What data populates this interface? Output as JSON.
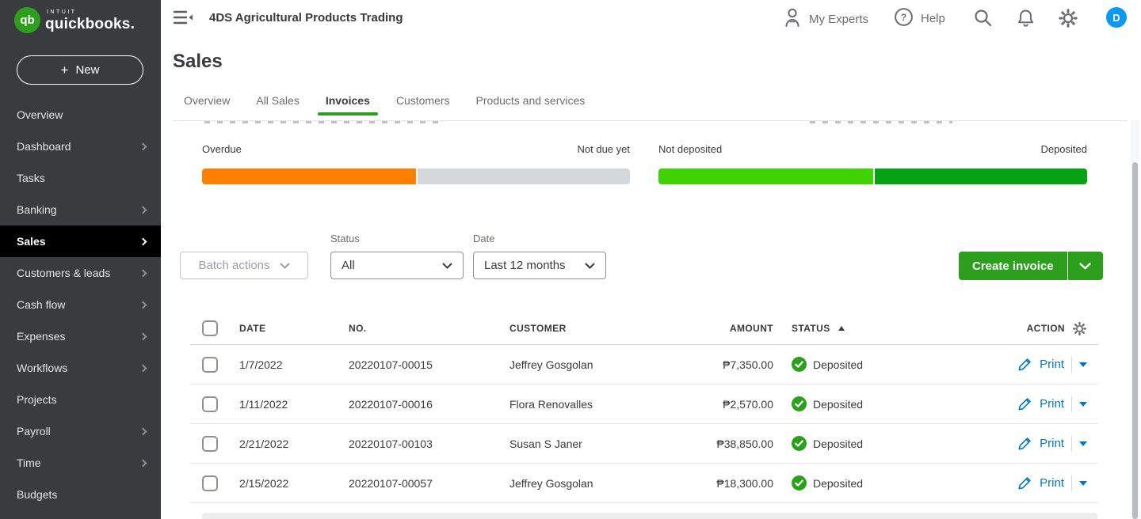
{
  "sidebar": {
    "logo": {
      "brand_top": "intuit",
      "brand_main": "quickbooks.",
      "monogram": "qb"
    },
    "new_button": {
      "icon": "+",
      "label": "New"
    },
    "items": [
      {
        "label": "Overview",
        "chevron": false,
        "active": false
      },
      {
        "label": "Dashboard",
        "chevron": true,
        "active": false
      },
      {
        "label": "Tasks",
        "chevron": false,
        "active": false
      },
      {
        "label": "Banking",
        "chevron": true,
        "active": false
      },
      {
        "label": "Sales",
        "chevron": true,
        "active": true
      },
      {
        "label": "Customers & leads",
        "chevron": true,
        "active": false
      },
      {
        "label": "Cash flow",
        "chevron": true,
        "active": false
      },
      {
        "label": "Expenses",
        "chevron": true,
        "active": false
      },
      {
        "label": "Workflows",
        "chevron": true,
        "active": false
      },
      {
        "label": "Projects",
        "chevron": false,
        "active": false
      },
      {
        "label": "Payroll",
        "chevron": true,
        "active": false
      },
      {
        "label": "Time",
        "chevron": true,
        "active": false
      },
      {
        "label": "Budgets",
        "chevron": false,
        "active": false
      }
    ]
  },
  "header": {
    "company_name": "4DS Agricultural Products Trading",
    "my_experts_label": "My Experts",
    "help_label": "Help",
    "help_glyph": "?",
    "avatar_initial": "D"
  },
  "page": {
    "title": "Sales"
  },
  "tabs": [
    {
      "label": "Overview",
      "active": false
    },
    {
      "label": "All Sales",
      "active": false
    },
    {
      "label": "Invoices",
      "active": true
    },
    {
      "label": "Customers",
      "active": false
    },
    {
      "label": "Products and services",
      "active": false
    }
  ],
  "summary": {
    "unpaid": {
      "left_label": "Overdue",
      "right_label": "Not due yet",
      "overdue_pct": 50
    },
    "paid": {
      "left_label": "Not deposited",
      "right_label": "Deposited",
      "not_deposited_pct": 50
    }
  },
  "filters": {
    "batch_actions_label": "Batch actions",
    "status_label": "Status",
    "status_value": "All",
    "date_label": "Date",
    "date_value": "Last 12 months",
    "create_invoice_label": "Create invoice"
  },
  "table": {
    "columns": [
      "DATE",
      "NO.",
      "CUSTOMER",
      "AMOUNT",
      "STATUS",
      "ACTION"
    ],
    "sort_column": "STATUS",
    "sort_direction": "ascending",
    "rows": [
      {
        "date": "1/7/2022",
        "no": "20220107-00015",
        "customer": "Jeffrey Gosgolan",
        "amount": "₱7,350.00",
        "status": "Deposited",
        "action": "Print"
      },
      {
        "date": "1/11/2022",
        "no": "20220107-00016",
        "customer": "Flora Renovalles",
        "amount": "₱2,570.00",
        "status": "Deposited",
        "action": "Print"
      },
      {
        "date": "2/21/2022",
        "no": "20220107-00103",
        "customer": "Susan S Janer",
        "amount": "₱38,850.00",
        "status": "Deposited",
        "action": "Print"
      },
      {
        "date": "2/15/2022",
        "no": "20220107-00057",
        "customer": "Jeffrey Gosgolan",
        "amount": "₱18,300.00",
        "status": "Deposited",
        "action": "Print"
      }
    ]
  },
  "colors": {
    "brand_green": "#2ca01c",
    "overdue_orange": "#ff8000",
    "not_due_gray": "#d4d7dc",
    "not_deposited_green": "#3fd304",
    "deposited_green": "#05a314",
    "link_blue": "#0077c5",
    "avatar_blue": "#0d99f2",
    "sidebar_bg": "#3a3b3f",
    "active_item_bg": "#000000"
  }
}
